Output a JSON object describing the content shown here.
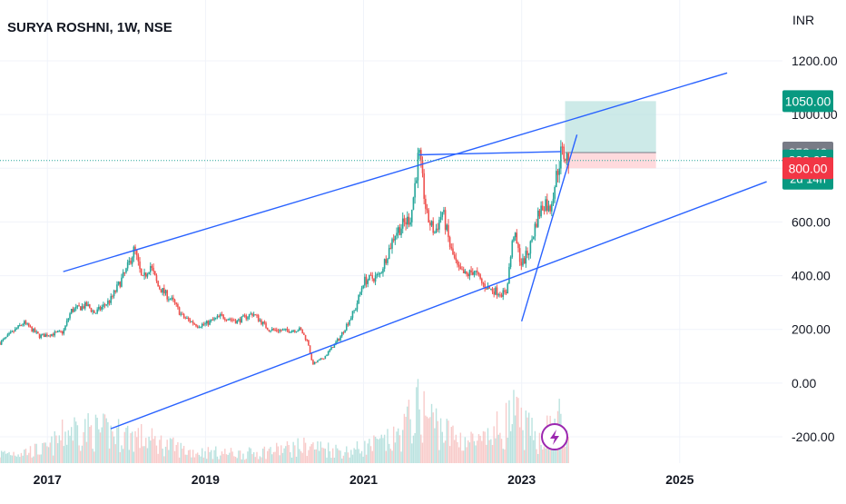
{
  "header": {
    "title": "SURYA ROSHNI, 1W, NSE",
    "currency": "INR"
  },
  "colors": {
    "up": "#26a69a",
    "down": "#ef5350",
    "trendline": "#2962ff",
    "target_zone": "#b2dfdb",
    "stop_zone": "#ffcdd2",
    "badge_target": "#089981",
    "badge_entry": "#787b86",
    "badge_stop": "#f23645",
    "axis_text": "#131722",
    "grid": "#f0f3fa"
  },
  "price_badges": [
    {
      "id": "target",
      "label": "1050.00",
      "price": 1050,
      "color_key": "badge_target"
    },
    {
      "id": "entry",
      "label": "858.40",
      "price": 858.4,
      "color_key": "badge_entry"
    },
    {
      "id": "last",
      "label": "828.95",
      "sublabel": "2d 14h",
      "price": 828.95,
      "color_key": "badge_target"
    },
    {
      "id": "stop",
      "label": "800.00",
      "price": 800,
      "color_key": "badge_stop"
    }
  ],
  "bottom_icon": "lightning-icon",
  "chart_data": {
    "type": "candlestick",
    "title": "SURYA ROSHNI, 1W, NSE",
    "unit": "INR",
    "y_ticks": [
      1200,
      1000,
      800,
      600,
      400,
      200,
      0,
      -200
    ],
    "y_tick_labels": [
      "1200.00",
      "1000.00",
      "800.00",
      "600.00",
      "400.00",
      "200.00",
      "0.00",
      "-200.00"
    ],
    "x_ticks": [
      2017,
      2019,
      2021,
      2023,
      2025
    ],
    "x_tick_labels": [
      "2017",
      "2019",
      "2021",
      "2023",
      "2025"
    ],
    "xlim": [
      2016.4,
      2026.3
    ],
    "ylim": [
      -250,
      1320
    ],
    "grid": true,
    "close_path": [
      [
        2016.4,
        150
      ],
      [
        2016.7,
        225
      ],
      [
        2016.9,
        175
      ],
      [
        2017.2,
        190
      ],
      [
        2017.3,
        270
      ],
      [
        2017.5,
        290
      ],
      [
        2017.6,
        260
      ],
      [
        2017.8,
        310
      ],
      [
        2018.0,
        420
      ],
      [
        2018.1,
        500
      ],
      [
        2018.2,
        380
      ],
      [
        2018.3,
        440
      ],
      [
        2018.4,
        360
      ],
      [
        2018.6,
        300
      ],
      [
        2018.7,
        250
      ],
      [
        2018.9,
        215
      ],
      [
        2019.0,
        220
      ],
      [
        2019.2,
        250
      ],
      [
        2019.4,
        230
      ],
      [
        2019.6,
        260
      ],
      [
        2019.8,
        200
      ],
      [
        2020.0,
        195
      ],
      [
        2020.2,
        200
      ],
      [
        2020.3,
        150
      ],
      [
        2020.35,
        70
      ],
      [
        2020.5,
        95
      ],
      [
        2020.7,
        170
      ],
      [
        2020.9,
        280
      ],
      [
        2021.0,
        380
      ],
      [
        2021.2,
        400
      ],
      [
        2021.4,
        560
      ],
      [
        2021.6,
        620
      ],
      [
        2021.7,
        860
      ],
      [
        2021.8,
        620
      ],
      [
        2021.9,
        560
      ],
      [
        2022.0,
        640
      ],
      [
        2022.1,
        500
      ],
      [
        2022.2,
        420
      ],
      [
        2022.3,
        400
      ],
      [
        2022.4,
        420
      ],
      [
        2022.5,
        370
      ],
      [
        2022.6,
        350
      ],
      [
        2022.8,
        330
      ],
      [
        2022.9,
        560
      ],
      [
        2023.0,
        440
      ],
      [
        2023.1,
        500
      ],
      [
        2023.2,
        620
      ],
      [
        2023.3,
        680
      ],
      [
        2023.35,
        640
      ],
      [
        2023.5,
        860
      ],
      [
        2023.6,
        829
      ]
    ],
    "volume_path": [
      [
        2016.4,
        0.12
      ],
      [
        2017.0,
        0.18
      ],
      [
        2017.3,
        0.45
      ],
      [
        2018.1,
        0.35
      ],
      [
        2018.8,
        0.15
      ],
      [
        2019.5,
        0.12
      ],
      [
        2020.3,
        0.22
      ],
      [
        2020.8,
        0.15
      ],
      [
        2021.4,
        0.3
      ],
      [
        2021.7,
        0.7
      ],
      [
        2022.1,
        0.35
      ],
      [
        2022.5,
        0.25
      ],
      [
        2022.9,
        0.6
      ],
      [
        2023.2,
        0.3
      ],
      [
        2023.5,
        0.55
      ],
      [
        2023.6,
        0.2
      ]
    ],
    "trendlines": [
      {
        "name": "channel-upper",
        "points": [
          [
            2017.2,
            415
          ],
          [
            2025.6,
            1155
          ]
        ]
      },
      {
        "name": "channel-lower",
        "points": [
          [
            2017.8,
            -170
          ],
          [
            2026.1,
            750
          ]
        ]
      },
      {
        "name": "resistance",
        "points": [
          [
            2021.7,
            850
          ],
          [
            2023.5,
            862
          ]
        ]
      },
      {
        "name": "rising-support",
        "points": [
          [
            2023.0,
            230
          ],
          [
            2023.7,
            925
          ]
        ]
      }
    ],
    "position": {
      "type": "long",
      "entry": 858.4,
      "target": 1050,
      "stop": 800,
      "x_start": 2023.55,
      "x_end": 2024.7,
      "last_price": 828.95
    }
  }
}
